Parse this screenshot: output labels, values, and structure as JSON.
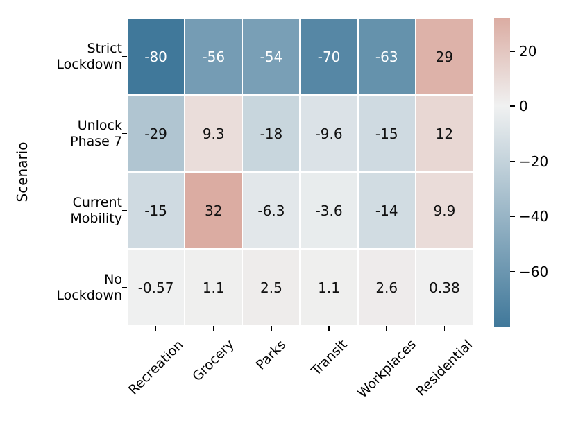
{
  "chart_data": {
    "type": "heatmap",
    "title": "",
    "xlabel": "",
    "ylabel": "Scenario",
    "row_labels": [
      [
        "Strict",
        "Lockdown"
      ],
      [
        "Unlock",
        "Phase 7"
      ],
      [
        "Current",
        "Mobility"
      ],
      [
        "No",
        "Lockdown"
      ]
    ],
    "col_labels": [
      "Recreation",
      "Grocery",
      "Parks",
      "Transit",
      "Workplaces",
      "Residential"
    ],
    "values": [
      [
        -80,
        -56,
        -54,
        -70,
        -63,
        29
      ],
      [
        -29,
        9.3,
        -18,
        -9.6,
        -15,
        12
      ],
      [
        -15,
        32,
        -6.3,
        -3.6,
        -14,
        9.9
      ],
      [
        -0.57,
        1.1,
        2.5,
        1.1,
        2.6,
        0.38
      ]
    ],
    "cell_labels": [
      [
        "-80",
        "-56",
        "-54",
        "-70",
        "-63",
        "29"
      ],
      [
        "-29",
        "9.3",
        "-18",
        "-9.6",
        "-15",
        "12"
      ],
      [
        "-15",
        "32",
        "-6.3",
        "-3.6",
        "-14",
        "9.9"
      ],
      [
        "-0.57",
        "1.1",
        "2.5",
        "1.1",
        "2.6",
        "0.38"
      ]
    ],
    "annotation_text_dark": "#111111",
    "annotation_text_light": "#ffffff",
    "colorbar": {
      "vmin": -80,
      "vmax": 32,
      "center": 0,
      "ticks": [
        20,
        0,
        -20,
        -40,
        -60
      ],
      "tick_labels": [
        "20",
        "0",
        "−20",
        "−40",
        "−60"
      ],
      "color_min": "#40789a",
      "color_mid": "#f0f1f1",
      "color_max": "#dbaca2"
    },
    "layout_hints": {
      "grid_lines": "white",
      "legend_position": "right-colorbar",
      "x_tick_rotation_deg": 45
    }
  }
}
